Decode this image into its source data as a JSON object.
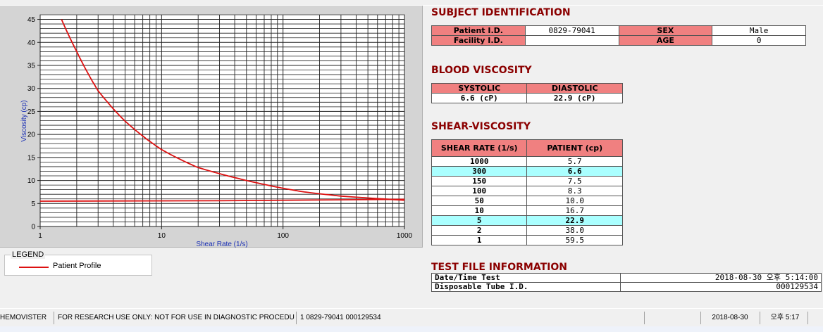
{
  "chart_data": {
    "type": "line",
    "xlabel": "Shear Rate (1/s)",
    "ylabel": "Viscosity (cp)",
    "x_scale": "log",
    "xlim": [
      1,
      1000
    ],
    "ylim": [
      0,
      46
    ],
    "x_ticks": [
      "1",
      "10",
      "100",
      "1000"
    ],
    "y_ticks": [
      "0",
      "5",
      "10",
      "15",
      "20",
      "25",
      "30",
      "35",
      "40",
      "45"
    ],
    "grid": true,
    "series": [
      {
        "name": "Patient Profile",
        "x": [
          1.5,
          2,
          3,
          5,
          10,
          20,
          50,
          100,
          150,
          300,
          1000
        ],
        "y": [
          45,
          38,
          29.5,
          22.9,
          16.7,
          12.8,
          10.0,
          8.3,
          7.5,
          6.6,
          5.7
        ],
        "color": "#dd1111"
      },
      {
        "name": "",
        "x": [
          1,
          30,
          1000
        ],
        "y": [
          5.5,
          5.6,
          5.9
        ],
        "color": "#dd1111"
      }
    ]
  },
  "legend": {
    "caption": "LEGEND",
    "label": "Patient Profile"
  },
  "subject": {
    "title": "SUBJECT IDENTIFICATION",
    "patient_id_label": "Patient I.D.",
    "patient_id": "0829-79041",
    "sex_label": "SEX",
    "sex": "Male",
    "facility_label": "Facility I.D.",
    "facility": "",
    "age_label": "AGE",
    "age": "0"
  },
  "blood": {
    "title": "BLOOD VISCOSITY",
    "systolic_label": "SYSTOLIC",
    "diastolic_label": "DIASTOLIC",
    "systolic": "6.6 (cP)",
    "diastolic": "22.9 (cP)"
  },
  "shear": {
    "title": "SHEAR-VISCOSITY",
    "col_rate": "SHEAR RATE (1/s)",
    "col_patient": "PATIENT (cp)",
    "rows": [
      {
        "rate": "1000",
        "value": "5.7"
      },
      {
        "rate": "300",
        "value": "6.6"
      },
      {
        "rate": "150",
        "value": "7.5"
      },
      {
        "rate": "100",
        "value": "8.3"
      },
      {
        "rate": "50",
        "value": "10.0"
      },
      {
        "rate": "10",
        "value": "16.7"
      },
      {
        "rate": "5",
        "value": "22.9"
      },
      {
        "rate": "2",
        "value": "38.0"
      },
      {
        "rate": "1",
        "value": "59.5"
      }
    ]
  },
  "testfile": {
    "title": "TEST FILE INFORMATION",
    "datetime_label": "Date/Time Test",
    "datetime": "2018-08-30  오후 5:14:00",
    "tube_label": "Disposable Tube I.D.",
    "tube": "000129534"
  },
  "status": {
    "app": "HEMOVISTER",
    "notice": "FOR RESEARCH USE ONLY: NOT FOR USE IN DIAGNOSTIC PROCEDURES",
    "record": "1  0829-79041  000129534",
    "date": "2018-08-30",
    "time": "오후 5:17"
  }
}
